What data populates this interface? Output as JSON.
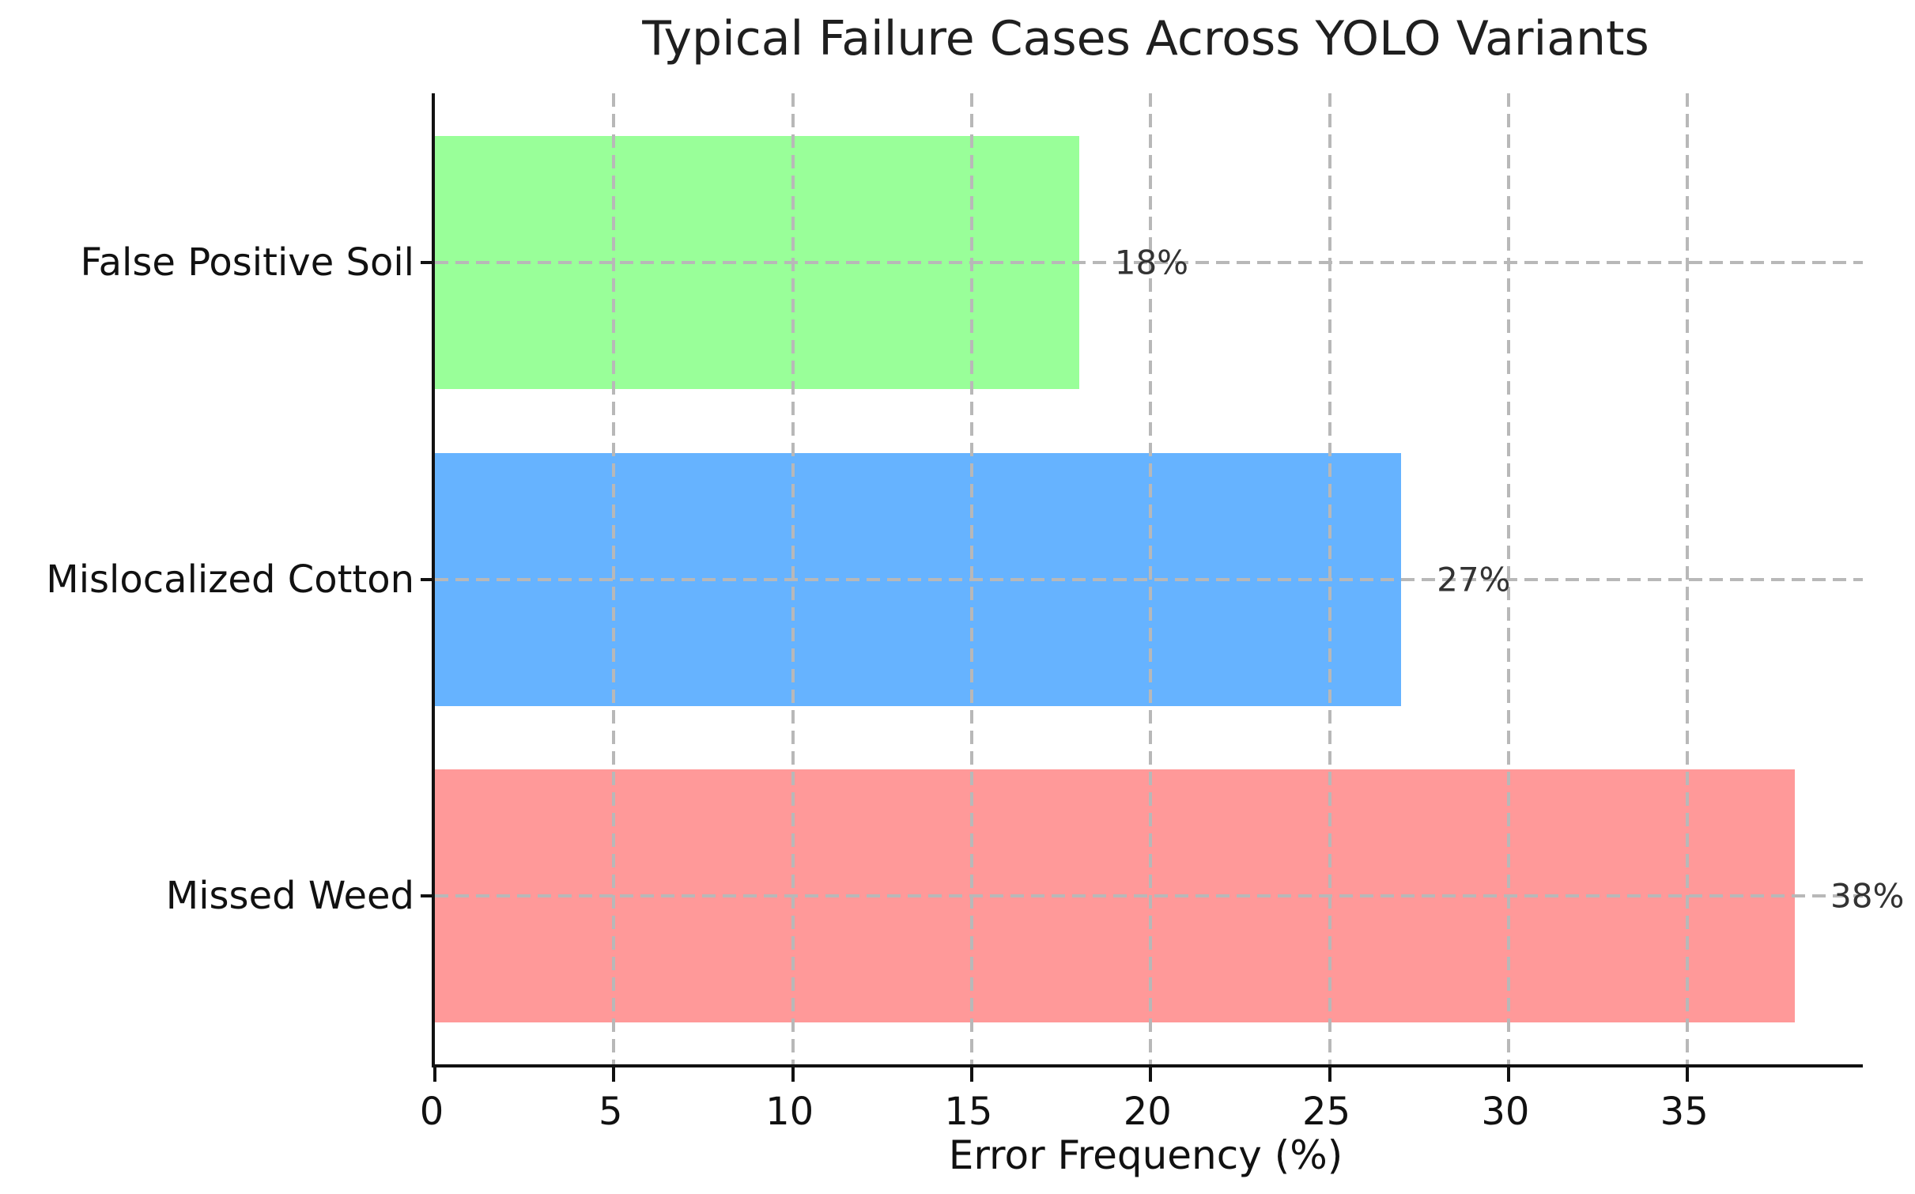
{
  "chart_data": {
    "type": "bar",
    "orientation": "horizontal",
    "title": "Typical Failure Cases Across YOLO Variants",
    "xlabel": "Error Frequency (%)",
    "ylabel": "",
    "categories": [
      "False Positive Soil",
      "Mislocalized Cotton",
      "Missed Weed"
    ],
    "values": [
      18,
      27,
      38
    ],
    "value_labels": [
      "18%",
      "27%",
      "38%"
    ],
    "bar_colors": [
      "#99ff99",
      "#66b3ff",
      "#ff9999"
    ],
    "xticks": [
      0,
      5,
      10,
      15,
      20,
      25,
      30,
      35
    ],
    "xtick_labels": [
      "0",
      "5",
      "10",
      "15",
      "20",
      "25",
      "30",
      "35"
    ],
    "xlim": [
      0,
      39.9
    ],
    "grid": "dashed, both axes, drawn over bars",
    "legend": "none",
    "colors": {
      "grid": "#b8b8b8",
      "spine": "#111111",
      "title_text": "#1f1f1f",
      "value_text": "#333333",
      "background": "#ffffff"
    }
  }
}
